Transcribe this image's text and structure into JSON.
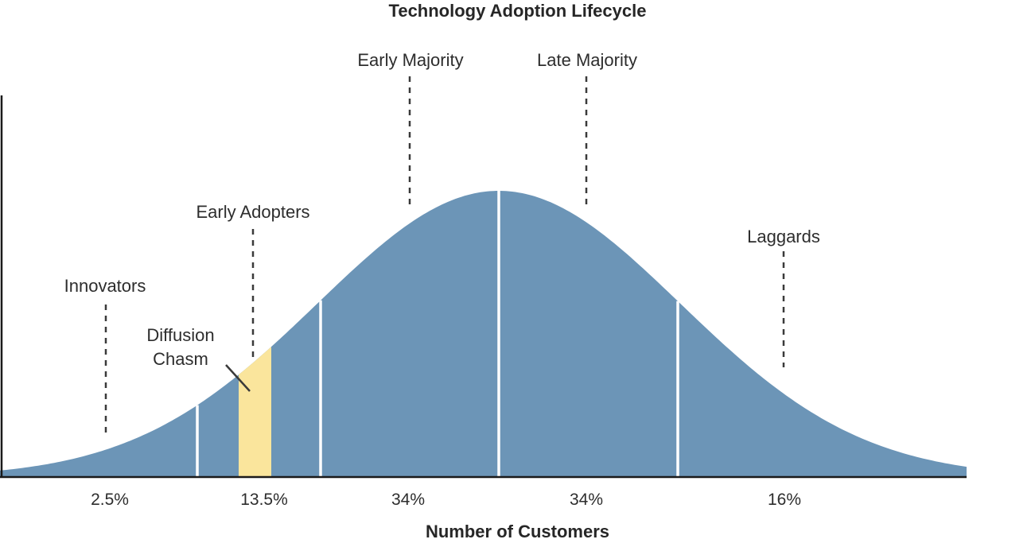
{
  "chart_data": {
    "type": "area",
    "title": "Technology Adoption Lifecycle",
    "xlabel": "Number of Customers",
    "ylabel": "",
    "description": "Normal bell curve of customer adoption over time, divided into segments by white lines at -2, -1, 0 and +1 standard deviations, with a yellow band marking the diffusion chasm inside the early adopter segment.",
    "categories": [
      "Innovators",
      "Early Adopters",
      "Early Majority",
      "Late Majority",
      "Laggards"
    ],
    "values": [
      2.5,
      13.5,
      34,
      34,
      16
    ],
    "value_labels": [
      "2.5%",
      "13.5%",
      "34%",
      "34%",
      "16%"
    ],
    "annotation": "Diffusion Chasm",
    "segment_boundaries_sigma": [
      -2,
      -1,
      0,
      1
    ],
    "legend": "none",
    "grid": false,
    "colors": {
      "curve_fill": "#6C95B7",
      "chasm_fill": "#FAE59C",
      "divider": "#FFFFFF",
      "leader_line": "#3A3A3A",
      "axis": "#1A1A1A",
      "text": "#2D2D2D"
    }
  }
}
